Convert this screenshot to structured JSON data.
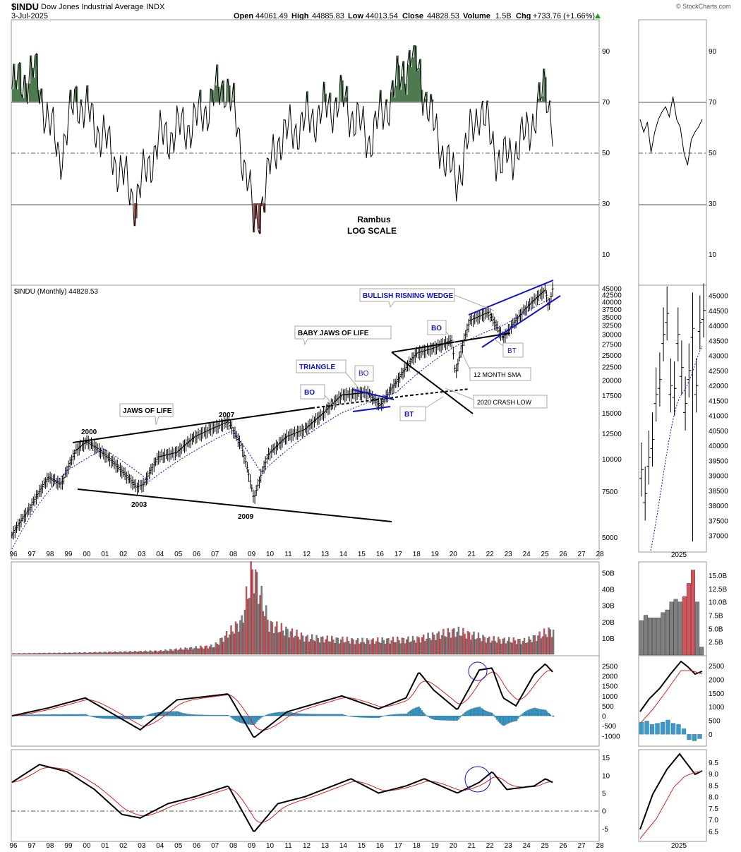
{
  "header": {
    "symbol": "$INDU",
    "name": "Dow Jones Industrial Average",
    "exchange": "INDX",
    "date": "3-Jul-2025",
    "open_label": "Open",
    "open": "44061.49",
    "high_label": "High",
    "high": "44885.83",
    "low_label": "Low",
    "low": "44013.54",
    "close_label": "Close",
    "close": "44828.53",
    "volume_label": "Volume",
    "volume": "1.5B",
    "chg_label": "Chg",
    "chg": "+733.76 (+1.66%)",
    "watermark": "© StockCharts.com"
  },
  "colors": {
    "rsi_fill_high": "#4e7a50",
    "rsi_fill_low": "#8a4a44",
    "annotation_blue": "#1010d0",
    "up_volume": "#d9535d",
    "down_volume": "#7f7f7f",
    "hist": "#3d9ac8",
    "signal": "#e02020"
  },
  "rsi_panel": {
    "ticks": [
      "90",
      "70",
      "50",
      "30",
      "10"
    ],
    "note_line1": "Rambus",
    "note_line2": "LOG SCALE"
  },
  "price_panel": {
    "legend": "$INDU (Monthly) 44828.53",
    "ticks": [
      "45000",
      "42500",
      "40000",
      "37500",
      "35000",
      "32500",
      "30000",
      "27500",
      "25000",
      "22500",
      "20000",
      "17500",
      "15000",
      "12500",
      "10000",
      "7500",
      "5000"
    ],
    "annotations": {
      "wedge": "BULLISH RISNING WEDGE",
      "baby_jaws": "BABY JAWS OF LIFE",
      "triangle": "TRIANGLE",
      "bo1": "BO",
      "bo2": "BO",
      "bo3": "BO",
      "bt1": "BT",
      "bt2": "BT",
      "sma": "12 MONTH SMA",
      "crash": "2020 CRASH LOW",
      "jaws": "JAWS OF LIFE",
      "y2000": "2000",
      "y2003": "2003",
      "y2007": "2007",
      "y2009": "2009"
    }
  },
  "x_axis_years": [
    "96",
    "97",
    "98",
    "99",
    "00",
    "01",
    "02",
    "03",
    "04",
    "05",
    "06",
    "07",
    "08",
    "09",
    "10",
    "11",
    "12",
    "13",
    "14",
    "15",
    "16",
    "17",
    "18",
    "19",
    "20",
    "21",
    "22",
    "23",
    "24",
    "25",
    "26",
    "27",
    "28"
  ],
  "volume_panel": {
    "ticks": [
      "50B",
      "40B",
      "30B",
      "20B",
      "10B"
    ]
  },
  "macd_panel": {
    "ticks": [
      "2500",
      "2000",
      "1500",
      "1000",
      "500",
      "0",
      "-500",
      "-1000"
    ]
  },
  "ppo_panel": {
    "ticks": [
      "15",
      "10",
      "5",
      "0",
      "-5"
    ]
  },
  "side": {
    "rsi_ticks": [
      "90",
      "70",
      "50",
      "30",
      "10"
    ],
    "price_ticks": [
      "45000",
      "44500",
      "44000",
      "43500",
      "43000",
      "42500",
      "42000",
      "41500",
      "41000",
      "40500",
      "40000",
      "39500",
      "39000",
      "38500",
      "38000",
      "37500",
      "37000"
    ],
    "volume_ticks": [
      "15.0B",
      "12.5B",
      "10.0B",
      "7.5B",
      "5.0B",
      "2.5B"
    ],
    "macd_ticks": [
      "2500",
      "2000",
      "1500",
      "1000",
      "500",
      "0"
    ],
    "ppo_ticks": [
      "9.5",
      "9.0",
      "8.5",
      "8.0",
      "7.5",
      "7.0",
      "6.5"
    ],
    "year": "2025"
  },
  "chart_data": {
    "type": "line",
    "title": "$INDU Dow Jones Industrial Average (Monthly, log scale)",
    "x_range": [
      1996,
      2028
    ],
    "price_series": {
      "name": "$INDU",
      "x": [
        1996,
        1997,
        1998,
        1998.7,
        1999.5,
        2000.1,
        2001,
        2002.8,
        2003.2,
        2004,
        2005,
        2006,
        2007.8,
        2008.5,
        2009.2,
        2010,
        2011,
        2012,
        2013,
        2014,
        2015.4,
        2016.1,
        2017,
        2018.1,
        2019,
        2020,
        2020.2,
        2021,
        2022,
        2022.8,
        2023.5,
        2024,
        2025.1,
        2025.3,
        2025.5
      ],
      "y": [
        5100,
        6500,
        8500,
        8000,
        10800,
        11700,
        10500,
        7800,
        8000,
        10200,
        10600,
        12200,
        13900,
        11300,
        7000,
        10400,
        12200,
        13000,
        15000,
        17600,
        18000,
        16000,
        19800,
        25500,
        26600,
        28500,
        21000,
        34000,
        36500,
        29000,
        34000,
        37500,
        44500,
        38000,
        44828.53
      ],
      "ylim": [
        4500,
        46000
      ],
      "yscale": "log"
    },
    "sma_12_month": {
      "x": [
        1996,
        1999,
        2001,
        2003.5,
        2008,
        2009.6,
        2014,
        2017,
        2020,
        2021,
        2023,
        2025.5
      ],
      "y": [
        4500,
        9000,
        10900,
        8200,
        12800,
        8800,
        15000,
        18000,
        26500,
        28800,
        33000,
        41500
      ]
    },
    "rsi": {
      "x": [
        1996,
        1997.2,
        1998.6,
        1999.5,
        2001,
        2002.7,
        2004,
        2006,
        2007.7,
        2008.9,
        2009.2,
        2010.5,
        2012,
        2014,
        2015.5,
        2017.9,
        2019,
        2020.2,
        2021.5,
        2022.7,
        2024,
        2025.1,
        2025.5
      ],
      "y": [
        75,
        82,
        48,
        72,
        56,
        31,
        55,
        62,
        78,
        39,
        19,
        55,
        62,
        71,
        55,
        90,
        60,
        38,
        68,
        45,
        56,
        75,
        63
      ],
      "ylim": [
        0,
        100
      ],
      "levels": [
        30,
        50,
        70
      ]
    },
    "volume_billions": {
      "x": [
        1996,
        2000,
        2004,
        2007,
        2008.5,
        2009.1,
        2010,
        2012,
        2015,
        2018,
        2020.2,
        2022,
        2024,
        2025.3
      ],
      "y": [
        0.5,
        1,
        2,
        5,
        20,
        52,
        18,
        10,
        8,
        9,
        14,
        9,
        8,
        14
      ]
    },
    "macd": {
      "x": [
        1996,
        1998,
        2000,
        2003,
        2005,
        2007.8,
        2009.2,
        2011,
        2014,
        2016,
        2017.5,
        2018.2,
        2019,
        2020.3,
        2021.5,
        2022.2,
        2022.8,
        2023.5,
        2024.5,
        2025.1,
        2025.5
      ],
      "y": [
        0,
        400,
        900,
        -700,
        800,
        1100,
        -1100,
        200,
        1000,
        350,
        900,
        2200,
        1300,
        300,
        2300,
        2400,
        900,
        500,
        2100,
        2600,
        2200
      ],
      "ylim": [
        -1200,
        2800
      ]
    },
    "ppo": {
      "x": [
        1996,
        1997.5,
        1999,
        2000.5,
        2002,
        2003,
        2004.5,
        2006,
        2007.8,
        2009.2,
        2010.5,
        2012,
        2014.5,
        2016,
        2017.5,
        2018.5,
        2020.3,
        2021.5,
        2022.2,
        2023,
        2024.5,
        2025.1,
        2025.5
      ],
      "y": [
        8,
        13,
        11,
        6,
        -1,
        -2,
        2,
        4,
        7,
        -6,
        2,
        4,
        9,
        5,
        7,
        9,
        5,
        8,
        11,
        6,
        7,
        9,
        8
      ],
      "ylim": [
        -7,
        16
      ]
    }
  }
}
